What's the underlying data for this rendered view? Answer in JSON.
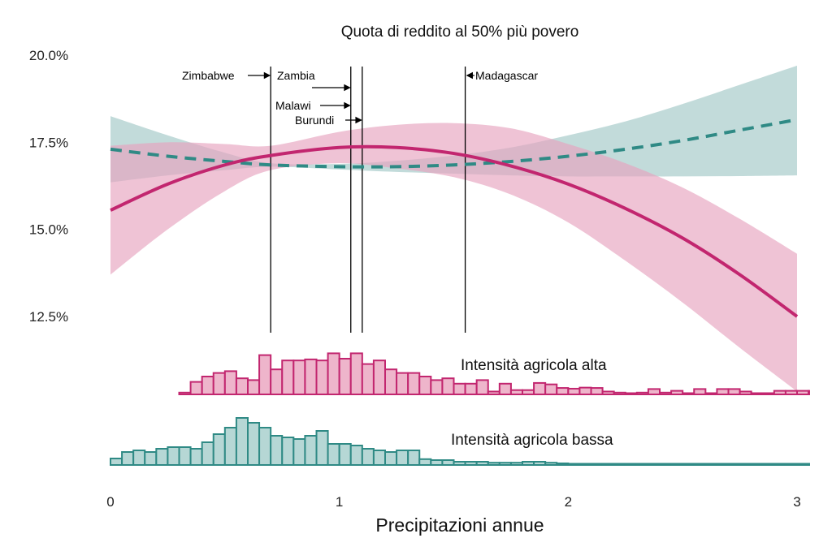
{
  "chart_data": {
    "type": "line",
    "title": "Quota di reddito al 50% più povero",
    "xlabel": "Precipitazioni annue",
    "ylabel": "",
    "xlim": [
      0,
      3
    ],
    "ylim": [
      12.5,
      20.0
    ],
    "x_ticks": [
      "0",
      "1",
      "2",
      "3"
    ],
    "y_ticks": [
      "20.0%",
      "17.5%",
      "15.0%",
      "12.5%"
    ],
    "grid": false,
    "colors": {
      "high": "#c2266f",
      "high_band": "#e6a3bf",
      "low": "#2f8a85",
      "low_band": "#a8cccb"
    },
    "series": [
      {
        "name": "Intensità agricola alta",
        "style": "solid",
        "x": [
          0,
          0.25,
          0.5,
          0.7,
          1.0,
          1.25,
          1.5,
          1.75,
          2.0,
          2.25,
          2.5,
          2.75,
          3.0
        ],
        "y": [
          15.55,
          16.3,
          16.85,
          17.12,
          17.35,
          17.35,
          17.18,
          16.82,
          16.3,
          15.6,
          14.75,
          13.7,
          12.5
        ],
        "lower": [
          13.7,
          15.0,
          16.1,
          16.7,
          16.9,
          16.75,
          16.5,
          16.0,
          15.2,
          14.1,
          12.9,
          11.6,
          10.35
        ],
        "upper": [
          17.4,
          17.5,
          17.45,
          17.4,
          17.8,
          18.0,
          18.05,
          17.9,
          17.45,
          16.9,
          16.2,
          15.3,
          14.3
        ]
      },
      {
        "name": "Intensità agricola bassa",
        "style": "dashed",
        "x": [
          0,
          0.25,
          0.5,
          0.7,
          1.0,
          1.25,
          1.5,
          1.75,
          2.0,
          2.25,
          2.5,
          2.75,
          3.0
        ],
        "y": [
          17.3,
          17.1,
          16.95,
          16.85,
          16.8,
          16.8,
          16.85,
          16.95,
          17.1,
          17.3,
          17.55,
          17.85,
          18.15
        ],
        "lower": [
          16.35,
          16.55,
          16.7,
          16.8,
          16.72,
          16.65,
          16.6,
          16.55,
          16.52,
          16.52,
          16.52,
          16.53,
          16.55
        ],
        "upper": [
          18.25,
          17.7,
          17.2,
          16.9,
          16.88,
          16.97,
          17.12,
          17.35,
          17.7,
          18.1,
          18.6,
          19.15,
          19.7
        ]
      }
    ],
    "annotations": [
      {
        "label": "Zimbabwe",
        "x": 0.7,
        "arrow": "right"
      },
      {
        "label": "Zambia",
        "x": 0.7,
        "arrow": "none"
      },
      {
        "label": "",
        "x": 1.05,
        "arrow": "right"
      },
      {
        "label": "Malawi",
        "x": 1.05,
        "arrow": "right"
      },
      {
        "label": "Burundi",
        "x": 1.1,
        "arrow": "right"
      },
      {
        "label": "Madagascar",
        "x": 1.55,
        "arrow": "left"
      }
    ],
    "histograms": [
      {
        "name": "Intensità agricola alta",
        "x_start": 0.3,
        "bin_width": 0.05,
        "counts": [
          0.5,
          3.5,
          5.0,
          6.0,
          6.5,
          4.5,
          4.0,
          11.0,
          7.0,
          9.5,
          9.5,
          9.8,
          9.5,
          11.5,
          10.0,
          11.5,
          8.5,
          9.5,
          7.0,
          6.0,
          6.0,
          5.0,
          4.0,
          4.5,
          3.0,
          3.0,
          4.0,
          0.8,
          3.0,
          1.2,
          1.2,
          3.2,
          2.8,
          1.8,
          1.6,
          1.9,
          1.8,
          0.8,
          0.5,
          0.3,
          0.5,
          1.5,
          0.5,
          1.0,
          0.2,
          1.5,
          0.3,
          1.5,
          1.5,
          0.8,
          0.2,
          0.3,
          1.0,
          1.0,
          1.0,
          1.0,
          0.3,
          0.3,
          0.3,
          0.3,
          0.3,
          0.3,
          0.3,
          0.3,
          0.3,
          0.3,
          0.3,
          0.3,
          0.3,
          0.3,
          0.3,
          0.3,
          0.3,
          0.3,
          0.3,
          0.3
        ]
      },
      {
        "name": "Intensità agricola bassa",
        "x_start": 0.0,
        "bin_width": 0.05,
        "counts": [
          2.0,
          4.0,
          4.5,
          4.0,
          5.0,
          5.5,
          5.5,
          5.0,
          7.0,
          9.5,
          11.5,
          14.5,
          13.0,
          11.5,
          9.0,
          8.5,
          8.0,
          9.0,
          10.5,
          6.5,
          6.5,
          6.0,
          5.0,
          4.5,
          4.0,
          4.5,
          4.5,
          1.8,
          1.5,
          1.5,
          1.0,
          1.0,
          1.0,
          0.7,
          0.7,
          0.7,
          1.0,
          1.0,
          0.7,
          0.5,
          0.3,
          0.3,
          0.3,
          0.3,
          0.3,
          0.3,
          0.3,
          0.3,
          0.3,
          0.3,
          0.3,
          0.3,
          0.3,
          0.3,
          0.3,
          0.3,
          0.3,
          0.3,
          0.3,
          0.3,
          0.3,
          0.2,
          0.2,
          0.2,
          0.2,
          0.2,
          0.2,
          0.2,
          0.2,
          0.2,
          0.2,
          0.2
        ]
      }
    ]
  }
}
